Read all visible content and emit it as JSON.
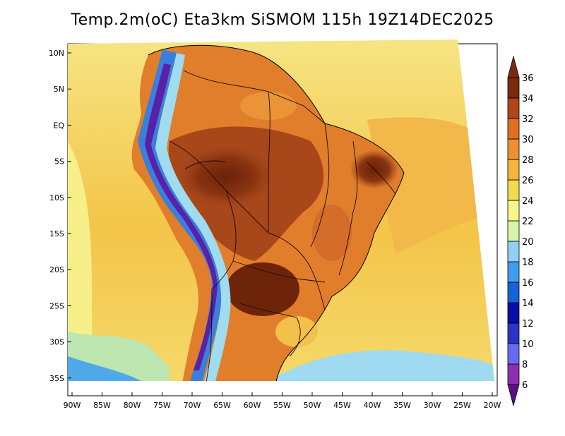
{
  "title": "Temp.2m(oC) Eta3km SiSMOM 115h 19Z14DEC2025",
  "colorbar": {
    "levels": [
      "6",
      "8",
      "10",
      "12",
      "14",
      "16",
      "18",
      "20",
      "22",
      "24",
      "26",
      "28",
      "30",
      "32",
      "34",
      "36"
    ],
    "colors": [
      "#5b0e86",
      "#8c2fb0",
      "#6a6af0",
      "#2a35c6",
      "#0c0ca8",
      "#1463d8",
      "#3f9cef",
      "#8fd0f4",
      "#d6f5a8",
      "#f8f58a",
      "#f2dc4e",
      "#f5b53a",
      "#ef9030",
      "#e07020",
      "#b0451a",
      "#7a2a0e"
    ]
  },
  "axes": {
    "lat_labels": [
      "10N",
      "5N",
      "EQ",
      "5S",
      "10S",
      "15S",
      "20S",
      "25S",
      "30S",
      "35S"
    ],
    "lon_labels": [
      "90W",
      "85W",
      "80W",
      "75W",
      "70W",
      "65W",
      "60W",
      "55W",
      "50W",
      "45W",
      "40W",
      "35W",
      "30W",
      "25W",
      "20W"
    ]
  }
}
